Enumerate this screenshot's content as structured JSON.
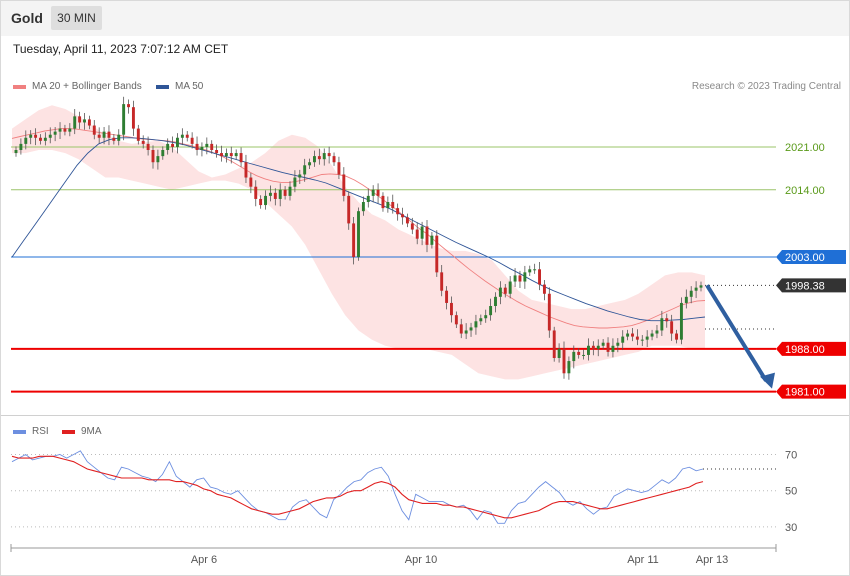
{
  "header": {
    "title": "Gold",
    "timeframe": "30 MIN",
    "datetime": "Tuesday, April 11, 2023 7:07:12 AM CET"
  },
  "legend": {
    "ma20_label": "MA 20 + Bollinger Bands",
    "ma50_label": "MA 50",
    "credit": "Research © 2023 Trading Central",
    "rsi_label": "RSI",
    "rsi_ma_label": "9MA"
  },
  "colors": {
    "up": "#2e7d32",
    "down": "#c62828",
    "ma20": "#f08080",
    "bollinger_fill": "#fde3e3",
    "ma50": "#2f5597",
    "resistance_green": "#9bc46a",
    "pivot_blue": "#1f6fd6",
    "support_red": "#ee0000",
    "current_bg": "#333333",
    "arrow": "#2f5fa0",
    "rsi": "#6d8fe0",
    "rsi_ma": "#e02020"
  },
  "chart_data": [
    {
      "type": "candlestick",
      "title": "Gold",
      "timeframe": "30 MIN",
      "ylim": [
        1978,
        2029
      ],
      "x_labels": [
        "Apr 6",
        "Apr 10",
        "Apr 11",
        "Apr 13"
      ],
      "levels": [
        {
          "label": "2021.00",
          "value": 2021.0,
          "kind": "resistance"
        },
        {
          "label": "2014.00",
          "value": 2014.0,
          "kind": "resistance"
        },
        {
          "label": "2003.00",
          "value": 2003.0,
          "kind": "pivot"
        },
        {
          "label": "1998.38",
          "value": 1998.38,
          "kind": "current"
        },
        {
          "label": "1988.00",
          "value": 1988.0,
          "kind": "support"
        },
        {
          "label": "1981.00",
          "value": 1981.0,
          "kind": "support"
        }
      ],
      "close": [
        2020.5,
        2021.5,
        2022.5,
        2023.0,
        2022.5,
        2022.0,
        2022.5,
        2023.0,
        2023.5,
        2024.0,
        2023.5,
        2024.0,
        2026.0,
        2025.0,
        2025.5,
        2024.5,
        2023.0,
        2022.5,
        2023.5,
        2022.5,
        2022.0,
        2023.0,
        2028.0,
        2027.5,
        2024.0,
        2022.0,
        2021.5,
        2020.5,
        2018.5,
        2019.5,
        2020.5,
        2021.5,
        2021.0,
        2022.5,
        2023.0,
        2022.5,
        2021.5,
        2020.5,
        2021.0,
        2021.5,
        2020.5,
        2020.0,
        2019.5,
        2020.0,
        2019.5,
        2020.0,
        2018.5,
        2016.0,
        2014.5,
        2012.5,
        2011.5,
        2013.0,
        2013.5,
        2012.5,
        2014.0,
        2013.0,
        2014.5,
        2016.0,
        2016.5,
        2018.0,
        2018.5,
        2019.5,
        2019.0,
        2020.0,
        2019.5,
        2018.5,
        2016.5,
        2013.0,
        2008.5,
        2003.0,
        2010.5,
        2012.0,
        2013.0,
        2014.0,
        2013.0,
        2011.0,
        2012.0,
        2011.0,
        2010.0,
        2009.5,
        2008.5,
        2007.5,
        2006.0,
        2008.0,
        2005.0,
        2006.5,
        2000.5,
        1997.5,
        1995.5,
        1993.5,
        1992.0,
        1990.5,
        1991.0,
        1991.5,
        1992.5,
        1993.0,
        1993.5,
        1995.0,
        1996.5,
        1998.0,
        1997.0,
        1999.0,
        2000.0,
        1999.0,
        2000.5,
        2001.0,
        2001.0,
        1998.5,
        1997.0,
        1991.0,
        1986.5,
        1988.0,
        1984.0,
        1986.0,
        1987.5,
        1987.0,
        1987.0,
        1988.5,
        1988.0,
        1988.5,
        1989.0,
        1987.5,
        1988.5,
        1989.0,
        1990.0,
        1990.5,
        1990.0,
        1989.5,
        1989.5,
        1990.0,
        1990.5,
        1991.0,
        1993.0,
        1992.5,
        1990.5,
        1989.5,
        1995.5,
        1996.5,
        1997.5,
        1998.0,
        1998.38
      ],
      "ma20": [
        2022.4,
        2022.7,
        2023.0,
        2023.3,
        2023.6,
        2023.8,
        2024.0,
        2024.0,
        2023.9,
        2023.7,
        2023.5,
        2023.3,
        2023.1,
        2022.9,
        2022.7,
        2022.5,
        2022.3,
        2022.2,
        2022.1,
        2022.0,
        2021.8,
        2021.5,
        2021.2,
        2020.8,
        2020.4,
        2019.9,
        2019.3,
        2018.6,
        2017.8,
        2017.0,
        2016.3,
        2015.8,
        2015.4,
        2015.2,
        2015.2,
        2015.4,
        2015.7,
        2016.1,
        2016.5,
        2016.6,
        2016.5,
        2016.2,
        2015.6,
        2014.8,
        2013.9,
        2012.9,
        2011.9,
        2010.9,
        2009.8,
        2008.7,
        2007.6,
        2006.7,
        2005.5,
        2004.4,
        2003.3,
        2002.2,
        2001.1,
        2000.1,
        1999.1,
        1998.2,
        1997.3,
        1996.5,
        1995.7,
        1995.0,
        1994.4,
        1993.8,
        1993.2,
        1992.7,
        1992.2,
        1991.8,
        1991.6,
        1991.5,
        1991.4,
        1991.4,
        1991.5,
        1991.6,
        1991.8,
        1992.2,
        1992.7,
        1993.3,
        1993.9,
        1994.5,
        1995.1,
        1995.5,
        1995.8,
        1995.9
      ],
      "ma50": [
        2003.0,
        2005.5,
        2008.0,
        2010.5,
        2013.0,
        2015.5,
        2018.0,
        2020.0,
        2021.5,
        2022.2,
        2022.5,
        2022.5,
        2022.4,
        2022.2,
        2022.0,
        2021.7,
        2021.3,
        2020.8,
        2020.3,
        2019.8,
        2019.3,
        2018.8,
        2018.3,
        2017.8,
        2017.3,
        2016.8,
        2016.4,
        2016.0,
        2015.6,
        2015.1,
        2014.4,
        2013.7,
        2013.0,
        2012.3,
        2011.6,
        2010.8,
        2009.9,
        2009.0,
        2008.1,
        2007.2,
        2006.3,
        2005.4,
        2004.6,
        2003.8,
        2003.0,
        2002.1,
        2001.1,
        2000.2,
        1999.2,
        1998.3,
        1997.5,
        1996.8,
        1996.1,
        1995.4,
        1994.8,
        1994.2,
        1993.7,
        1993.2,
        1992.8,
        1992.6,
        1992.6,
        1992.7,
        1992.8,
        1993.0,
        1993.2
      ],
      "bollinger_upper": [
        2024.0,
        2025.5,
        2027.0,
        2027.8,
        2027.2,
        2026.0,
        2024.5,
        2023.0,
        2022.0,
        2021.5,
        2021.8,
        2022.0,
        2021.0,
        2019.0,
        2017.0,
        2016.0,
        2016.5,
        2017.5,
        2018.5,
        2020.0,
        2022.0,
        2023.0,
        2022.5,
        2021.0,
        2018.0,
        2014.5,
        2012.0,
        2010.0,
        2009.0,
        2007.5,
        2006.5,
        2005.5,
        2004.5,
        2004.0,
        2004.0,
        2003.5,
        2002.5,
        2000.0,
        1997.5,
        1996.0,
        1995.5,
        1995.0,
        1994.5,
        1994.5,
        1995.0,
        1995.5,
        1996.0,
        1997.0,
        1998.5,
        2000.0,
        2000.5,
        2000.5,
        2000.0
      ],
      "bollinger_lower": [
        2020.0,
        2020.0,
        2020.5,
        2020.5,
        2020.0,
        2019.0,
        2017.5,
        2016.0,
        2016.0,
        2015.5,
        2015.0,
        2014.5,
        2014.0,
        2014.5,
        2015.0,
        2015.5,
        2015.5,
        2015.0,
        2014.0,
        2012.0,
        2010.0,
        2008.0,
        2005.0,
        2001.0,
        1997.0,
        1993.5,
        1991.0,
        1989.5,
        1988.5,
        1988.0,
        1988.0,
        1988.0,
        1987.5,
        1987.0,
        1985.5,
        1984.0,
        1983.5,
        1983.0,
        1983.0,
        1983.5,
        1984.0,
        1984.5,
        1985.0,
        1985.5,
        1986.0,
        1986.5,
        1987.0,
        1987.5,
        1988.5,
        1988.5,
        1988.5,
        1988.0,
        1988.0
      ]
    },
    {
      "type": "line",
      "title": "RSI",
      "ylim": [
        20,
        78
      ],
      "y_ticks": [
        70,
        50,
        30
      ],
      "series": [
        {
          "name": "RSI",
          "values": [
            66,
            68,
            70,
            67,
            68,
            69,
            69,
            70,
            68,
            70,
            72,
            66,
            63,
            60,
            57,
            56,
            63,
            62,
            60,
            58,
            57,
            55,
            59,
            66,
            58,
            55,
            52,
            56,
            57,
            52,
            51,
            49,
            48,
            50,
            46,
            42,
            39,
            38,
            36,
            34,
            34,
            41,
            44,
            45,
            41,
            37,
            35,
            45,
            48,
            52,
            55,
            56,
            60,
            62,
            63,
            58,
            48,
            39,
            34,
            48,
            46,
            44,
            44,
            44,
            42,
            41,
            42,
            39,
            34,
            39,
            38,
            32,
            32,
            39,
            43,
            44,
            48,
            52,
            55,
            52,
            49,
            44,
            42,
            44,
            40,
            37,
            40,
            41,
            47,
            49,
            51,
            50,
            49,
            50,
            53,
            56,
            54,
            57,
            62,
            63,
            61,
            62
          ]
        },
        {
          "name": "9MA",
          "values": [
            69,
            68,
            68,
            68,
            69,
            69,
            69,
            68,
            67,
            66,
            64,
            62,
            61,
            60,
            59,
            58,
            57,
            57,
            57,
            57,
            56,
            56,
            56,
            56,
            55,
            55,
            54,
            53,
            51,
            50,
            48,
            47,
            46,
            44,
            42,
            40,
            39,
            38,
            37,
            37,
            38,
            39,
            40,
            42,
            44,
            45,
            46,
            46,
            47,
            49,
            50,
            50,
            52,
            54,
            55,
            54,
            52,
            48,
            45,
            44,
            43,
            43,
            43,
            42,
            42,
            41,
            41,
            40,
            39,
            38,
            37,
            36,
            35,
            35,
            36,
            37,
            38,
            39,
            41,
            43,
            44,
            44,
            44,
            43,
            42,
            41,
            40,
            40,
            41,
            42,
            43,
            44,
            45,
            46,
            47,
            48,
            49,
            50,
            51,
            52,
            54,
            55
          ]
        }
      ]
    }
  ]
}
